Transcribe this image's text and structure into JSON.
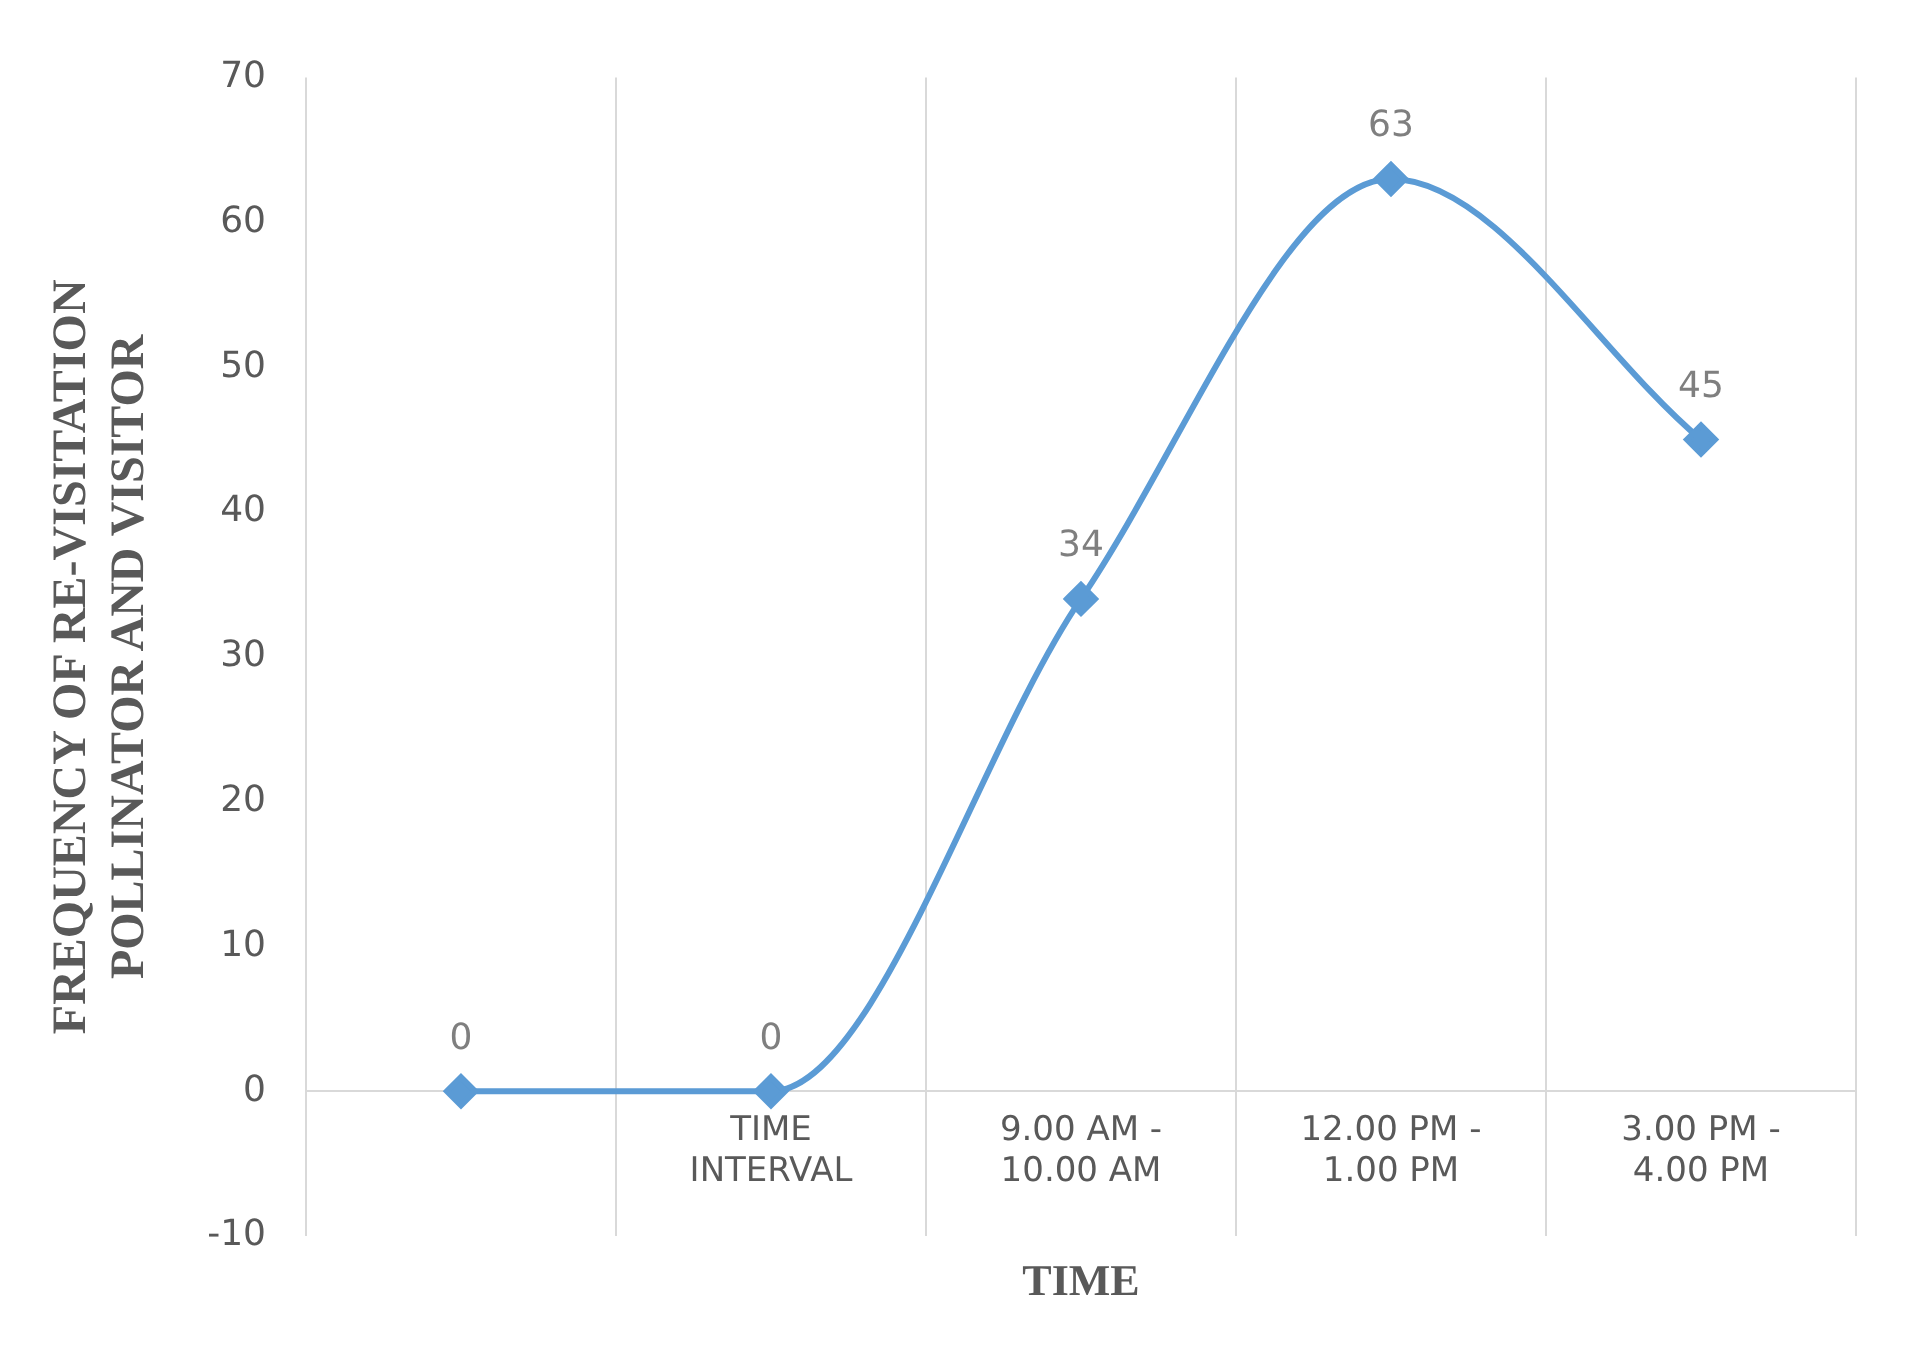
{
  "chart_data": {
    "type": "line",
    "xlabel": "TIME",
    "ylabel": "FREQUENCY OF RE-VISITATION POLLINATOR AND VISITOR",
    "categories": [
      null,
      "TIME INTERVAL",
      "9.00 AM - 10.00 AM",
      "12.00 PM - 1.00 PM",
      "3.00 PM - 4.00 PM"
    ],
    "series": [
      {
        "color": "#5b9bd5",
        "values": [
          0,
          0,
          34,
          63,
          45
        ]
      }
    ],
    "ylim": [
      -10,
      70
    ],
    "yticks": [
      -10,
      0,
      10,
      20,
      30,
      40,
      50,
      60,
      70
    ],
    "grid": "x",
    "marker": "diamond",
    "data_labels": true,
    "legend": false
  }
}
